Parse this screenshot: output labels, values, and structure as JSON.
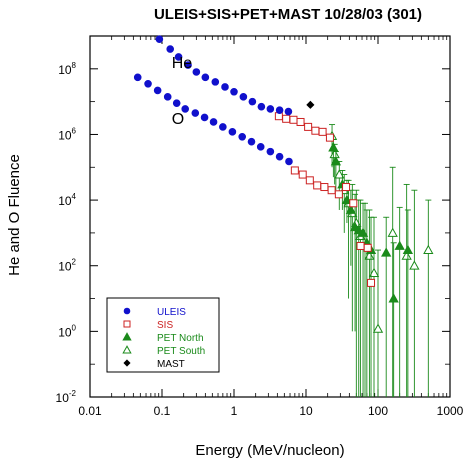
{
  "chart_data": {
    "type": "scatter",
    "title": "ULEIS+SIS+PET+MAST 10/28/03 (301)",
    "xlabel": "Energy (MeV/nucleon)",
    "ylabel": "He and O Fluence",
    "x_scale": "log",
    "y_scale": "log",
    "xlim": [
      0.01,
      1000
    ],
    "ylim": [
      0.01,
      1000000000
    ],
    "x_ticks": [
      {
        "value": 0.01,
        "label": "0.01"
      },
      {
        "value": 0.1,
        "label": "0.1"
      },
      {
        "value": 1,
        "label": "1"
      },
      {
        "value": 10,
        "label": "10"
      },
      {
        "value": 100,
        "label": "100"
      },
      {
        "value": 1000,
        "label": "1000"
      }
    ],
    "y_ticks": [
      {
        "value": 0.01,
        "base": "10",
        "exp": "-2"
      },
      {
        "value": 1,
        "base": "10",
        "exp": "0"
      },
      {
        "value": 100,
        "base": "10",
        "exp": "2"
      },
      {
        "value": 10000,
        "base": "10",
        "exp": "4"
      },
      {
        "value": 1000000,
        "base": "10",
        "exp": "6"
      },
      {
        "value": 100000000,
        "base": "10",
        "exp": "8"
      }
    ],
    "curve_labels": [
      {
        "text": "He",
        "x": 0.09,
        "y": 150000000
      },
      {
        "text": "O",
        "x": 0.09,
        "y": 3000000
      }
    ],
    "legend_position": "bottom-left",
    "series": [
      {
        "name": "ULEIS",
        "color": "#1010cc",
        "marker": "circle",
        "points": [
          [
            0.092,
            800000000
          ],
          [
            0.13,
            400000000
          ],
          [
            0.17,
            230000000
          ],
          [
            0.23,
            130000000
          ],
          [
            0.3,
            80000000
          ],
          [
            0.4,
            55000000
          ],
          [
            0.55,
            40000000
          ],
          [
            0.75,
            28000000
          ],
          [
            1.0,
            20000000
          ],
          [
            1.35,
            14000000
          ],
          [
            1.8,
            10000000
          ],
          [
            2.4,
            7000000
          ],
          [
            3.2,
            6000000
          ],
          [
            4.3,
            5500000
          ],
          [
            5.7,
            5000000
          ],
          [
            0.046,
            55000000
          ],
          [
            0.064,
            35000000
          ],
          [
            0.087,
            22000000
          ],
          [
            0.12,
            14000000
          ],
          [
            0.16,
            9000000
          ],
          [
            0.21,
            6000000
          ],
          [
            0.29,
            4500000
          ],
          [
            0.39,
            3300000
          ],
          [
            0.52,
            2400000
          ],
          [
            0.7,
            1700000
          ],
          [
            0.95,
            1200000
          ],
          [
            1.3,
            850000
          ],
          [
            1.75,
            600000
          ],
          [
            2.35,
            420000
          ],
          [
            3.2,
            300000
          ],
          [
            4.3,
            210000
          ],
          [
            5.8,
            150000
          ]
        ]
      },
      {
        "name": "SIS",
        "color": "#cc2222",
        "marker": "square-open",
        "points": [
          [
            4.2,
            3600000
          ],
          [
            5.3,
            3000000
          ],
          [
            6.7,
            2800000
          ],
          [
            8.4,
            2400000
          ],
          [
            10.7,
            1700000
          ],
          [
            13.5,
            1300000
          ],
          [
            17.0,
            1200000
          ],
          [
            21.5,
            800000
          ],
          [
            7.0,
            80000
          ],
          [
            9.0,
            60000
          ],
          [
            11.3,
            40000
          ],
          [
            14.3,
            28000
          ],
          [
            18.0,
            25000
          ],
          [
            22.7,
            20000
          ],
          [
            28.6,
            15000
          ],
          [
            36.0,
            25000
          ],
          [
            45.4,
            8000
          ],
          [
            57.2,
            400
          ],
          [
            72.0,
            350
          ],
          [
            80.0,
            30
          ]
        ]
      },
      {
        "name": "PET North",
        "color": "#1a8a1a",
        "marker": "triangle-filled",
        "points": [
          [
            24.0,
            400000,
            50000,
            700000
          ],
          [
            26.0,
            150000,
            20000,
            300000
          ],
          [
            32.0,
            30000,
            5000,
            80000
          ],
          [
            37.0,
            10000,
            2000,
            40000
          ],
          [
            42.0,
            5000,
            100,
            20000
          ],
          [
            48.0,
            1500,
            1,
            15000
          ],
          [
            54.0,
            1200,
            0.01,
            10000
          ],
          [
            62.0,
            1000,
            0.01,
            8000
          ],
          [
            70.0,
            500,
            0.01,
            5000
          ],
          [
            80.0,
            300,
            0.01,
            3000
          ],
          [
            130.0,
            250,
            0.01,
            3000
          ],
          [
            165.0,
            10,
            0.01,
            500
          ],
          [
            200.0,
            400,
            0.01,
            6000
          ],
          [
            260.0,
            300,
            0.01,
            5000
          ]
        ]
      },
      {
        "name": "PET South",
        "color": "#1a8a1a",
        "marker": "triangle-open",
        "points": [
          [
            23.0,
            900000,
            100000,
            2000000
          ],
          [
            25.0,
            250000,
            30000,
            500000
          ],
          [
            29.0,
            60000,
            5000,
            150000
          ],
          [
            34.0,
            20000,
            1000,
            60000
          ],
          [
            39.0,
            8000,
            10,
            40000
          ],
          [
            44.0,
            4000,
            1,
            30000
          ],
          [
            50.0,
            2000,
            0.01,
            20000
          ],
          [
            57.0,
            800,
            0.01,
            10000
          ],
          [
            66.0,
            400,
            0.01,
            8000
          ],
          [
            76.0,
            200,
            0.01,
            5000
          ],
          [
            88.0,
            60,
            0.01,
            3000
          ],
          [
            100.0,
            1.2,
            0.01,
            300
          ],
          [
            160.0,
            1000,
            0.01,
            100000
          ],
          [
            250.0,
            200,
            0.01,
            30000
          ],
          [
            320.0,
            100,
            0.01,
            20000
          ],
          [
            500.0,
            300,
            0.01,
            10000
          ]
        ]
      },
      {
        "name": "MAST",
        "color": "#000000",
        "marker": "diamond",
        "points": [
          [
            11.5,
            8000000
          ]
        ]
      }
    ]
  }
}
